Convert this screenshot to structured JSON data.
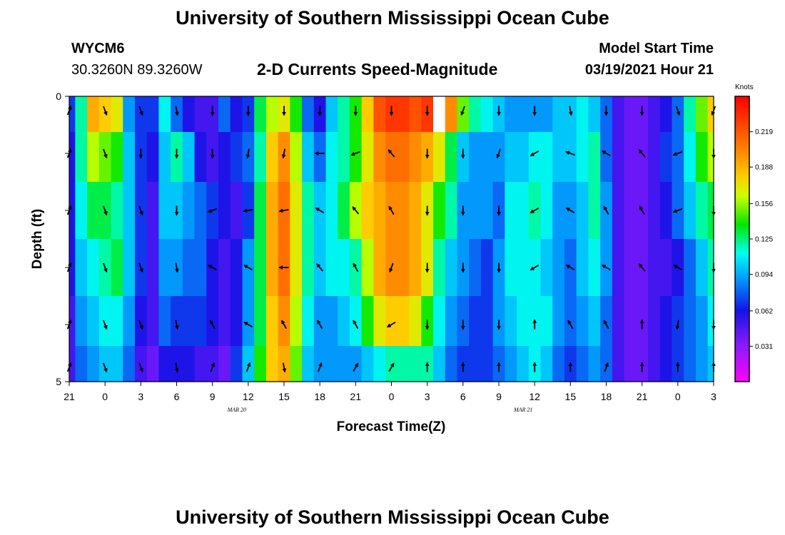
{
  "header": {
    "title_top": "University of Southern Mississippi Ocean Cube",
    "title_bottom": "University of Southern Mississippi Ocean Cube",
    "station_id": "WYCM6",
    "coords": "30.3260N 89.3260W",
    "model_start_label": "Model Start Time",
    "model_start_value": "03/19/2021 Hour 21"
  },
  "chart_data": {
    "type": "heatmap",
    "title": "2-D Currents Speed-Magnitude",
    "xlabel": "Forecast Time(Z)",
    "ylabel": "Depth (ft)",
    "colorbar_label": "Knots",
    "colorbar_ticks": [
      "0.219",
      "0.188",
      "0.156",
      "0.125",
      "0.094",
      "0.062",
      "0.031"
    ],
    "colorbar_tick_values": [
      0.219,
      0.188,
      0.156,
      0.125,
      0.094,
      0.062,
      0.031
    ],
    "colorbar_range": [
      0.0,
      0.25
    ],
    "x_tick_labels": [
      "21",
      "0",
      "3",
      "6",
      "9",
      "12",
      "15",
      "18",
      "21",
      "0",
      "3",
      "6",
      "9",
      "12",
      "15",
      "18",
      "21",
      "0",
      "3"
    ],
    "x_range_hours": [
      0,
      54
    ],
    "date_labels": [
      {
        "text": "MAR  20",
        "hour": 15
      },
      {
        "text": "MAR  21",
        "hour": 39
      }
    ],
    "y_tick_labels": [
      "0",
      "5"
    ],
    "y_range_ft": [
      0,
      5
    ],
    "depth_layers_ft": [
      0.25,
      1.0,
      2.0,
      3.0,
      4.0,
      4.75
    ],
    "time_columns_hours": [
      0,
      1,
      2,
      3,
      4,
      5,
      6,
      7,
      8,
      9,
      10,
      11,
      12,
      13,
      14,
      15,
      16,
      17,
      18,
      19,
      20,
      21,
      22,
      23,
      24,
      25,
      26,
      27,
      28,
      29,
      30,
      31,
      32,
      33,
      34,
      35,
      36,
      37,
      38,
      39,
      40,
      41,
      42,
      43,
      44,
      45,
      46,
      47,
      48,
      49,
      50,
      51,
      52,
      53,
      54
    ],
    "speed_knots_by_layer": [
      [
        0.07,
        0.12,
        0.19,
        0.18,
        0.17,
        0.09,
        0.07,
        0.07,
        0.11,
        0.08,
        0.06,
        0.05,
        0.05,
        0.08,
        0.06,
        0.07,
        0.13,
        0.16,
        0.17,
        0.14,
        0.08,
        0.06,
        0.1,
        0.12,
        0.14,
        0.18,
        0.22,
        0.23,
        0.23,
        0.22,
        0.23,
        0.21,
        0.2,
        0.15,
        0.12,
        0.11,
        0.1,
        0.09,
        0.09,
        0.09,
        0.09,
        0.1,
        0.1,
        0.11,
        0.1,
        0.08,
        0.05,
        0.04,
        0.04,
        0.05,
        0.06,
        0.08,
        0.12,
        0.15,
        0.18
      ],
      [
        0.06,
        0.12,
        0.16,
        0.15,
        0.14,
        0.1,
        0.07,
        0.06,
        0.1,
        0.12,
        0.1,
        0.06,
        0.05,
        0.06,
        0.07,
        0.08,
        0.12,
        0.18,
        0.2,
        0.16,
        0.1,
        0.08,
        0.11,
        0.12,
        0.14,
        0.17,
        0.2,
        0.21,
        0.21,
        0.2,
        0.19,
        0.17,
        0.13,
        0.1,
        0.09,
        0.09,
        0.09,
        0.1,
        0.1,
        0.11,
        0.11,
        0.1,
        0.1,
        0.11,
        0.12,
        0.08,
        0.05,
        0.04,
        0.04,
        0.05,
        0.07,
        0.08,
        0.11,
        0.14,
        0.16
      ],
      [
        0.06,
        0.11,
        0.13,
        0.13,
        0.12,
        0.1,
        0.07,
        0.05,
        0.1,
        0.1,
        0.09,
        0.08,
        0.07,
        0.06,
        0.05,
        0.07,
        0.13,
        0.19,
        0.21,
        0.17,
        0.12,
        0.1,
        0.11,
        0.13,
        0.16,
        0.18,
        0.19,
        0.2,
        0.2,
        0.19,
        0.17,
        0.14,
        0.12,
        0.09,
        0.09,
        0.09,
        0.08,
        0.11,
        0.11,
        0.12,
        0.11,
        0.09,
        0.09,
        0.1,
        0.12,
        0.09,
        0.05,
        0.04,
        0.04,
        0.05,
        0.06,
        0.08,
        0.1,
        0.12,
        0.13
      ],
      [
        0.06,
        0.1,
        0.11,
        0.12,
        0.13,
        0.1,
        0.07,
        0.05,
        0.09,
        0.09,
        0.08,
        0.08,
        0.06,
        0.05,
        0.06,
        0.09,
        0.13,
        0.19,
        0.21,
        0.17,
        0.12,
        0.1,
        0.11,
        0.11,
        0.12,
        0.16,
        0.19,
        0.2,
        0.2,
        0.19,
        0.17,
        0.12,
        0.1,
        0.09,
        0.08,
        0.07,
        0.09,
        0.11,
        0.11,
        0.11,
        0.1,
        0.09,
        0.08,
        0.1,
        0.11,
        0.09,
        0.05,
        0.04,
        0.04,
        0.05,
        0.05,
        0.06,
        0.08,
        0.1,
        0.12
      ],
      [
        0.05,
        0.09,
        0.1,
        0.11,
        0.11,
        0.09,
        0.06,
        0.05,
        0.08,
        0.07,
        0.07,
        0.07,
        0.06,
        0.05,
        0.06,
        0.09,
        0.13,
        0.18,
        0.2,
        0.16,
        0.11,
        0.09,
        0.09,
        0.1,
        0.11,
        0.14,
        0.17,
        0.18,
        0.18,
        0.17,
        0.14,
        0.11,
        0.09,
        0.08,
        0.07,
        0.07,
        0.09,
        0.1,
        0.11,
        0.11,
        0.11,
        0.09,
        0.08,
        0.09,
        0.1,
        0.08,
        0.05,
        0.04,
        0.04,
        0.05,
        0.06,
        0.07,
        0.08,
        0.09,
        0.11
      ],
      [
        0.05,
        0.08,
        0.09,
        0.1,
        0.1,
        0.08,
        0.05,
        0.04,
        0.06,
        0.06,
        0.06,
        0.05,
        0.05,
        0.04,
        0.07,
        0.1,
        0.14,
        0.18,
        0.19,
        0.15,
        0.1,
        0.09,
        0.09,
        0.09,
        0.09,
        0.1,
        0.11,
        0.12,
        0.12,
        0.12,
        0.12,
        0.1,
        0.08,
        0.07,
        0.07,
        0.07,
        0.08,
        0.09,
        0.1,
        0.11,
        0.1,
        0.08,
        0.07,
        0.08,
        0.09,
        0.08,
        0.05,
        0.04,
        0.04,
        0.05,
        0.06,
        0.07,
        0.08,
        0.09,
        0.1
      ]
    ],
    "missing_cells": [
      {
        "hour": 31,
        "layer": 0
      }
    ],
    "arrow_times_hours": [
      0,
      3,
      6,
      9,
      12,
      15,
      18,
      21,
      24,
      27,
      30,
      33,
      36,
      39,
      42,
      45,
      48,
      51,
      54
    ],
    "arrow_direction_deg_by_layer": [
      [
        20,
        160,
        160,
        170,
        180,
        180,
        180,
        180,
        180,
        180,
        180,
        200,
        180,
        180,
        170,
        180,
        180,
        160,
        200
      ],
      [
        20,
        160,
        180,
        180,
        180,
        190,
        190,
        270,
        250,
        320,
        180,
        180,
        200,
        240,
        290,
        300,
        320,
        250,
        180
      ],
      [
        20,
        160,
        160,
        180,
        250,
        260,
        260,
        300,
        320,
        330,
        180,
        180,
        180,
        240,
        300,
        330,
        330,
        250,
        180
      ],
      [
        20,
        160,
        160,
        170,
        300,
        300,
        270,
        320,
        330,
        200,
        180,
        180,
        180,
        240,
        300,
        300,
        320,
        300,
        180
      ],
      [
        20,
        160,
        160,
        170,
        330,
        300,
        330,
        330,
        330,
        240,
        180,
        180,
        180,
        0,
        330,
        330,
        0,
        190,
        180
      ],
      [
        20,
        160,
        160,
        170,
        20,
        20,
        170,
        20,
        30,
        30,
        0,
        0,
        0,
        0,
        0,
        20,
        0,
        0,
        0
      ]
    ]
  }
}
